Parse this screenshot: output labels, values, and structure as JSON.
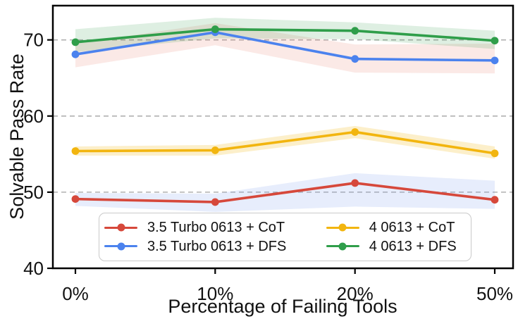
{
  "chart_data": {
    "type": "line",
    "title": "",
    "xlabel": "Percentage of Failing Tools",
    "ylabel": "Solvable Pass Rate",
    "categories": [
      "0%",
      "10%",
      "20%",
      "50%"
    ],
    "yticks": [
      40,
      50,
      60,
      70
    ],
    "ylim": [
      40,
      74.5
    ],
    "grid": {
      "horizontal_dashed_at": [
        50,
        60,
        70
      ],
      "color": "#b0b0b0"
    },
    "axis_color": "#000000",
    "legend": {
      "position": "lower-center-inside",
      "columns": 2,
      "row_major_order": [
        "3.5 Turbo 0613 + CoT",
        "4 0613 + CoT",
        "3.5 Turbo 0613 + DFS",
        "4 0613 + DFS"
      ]
    },
    "series": [
      {
        "name": "3.5 Turbo 0613 + CoT",
        "color": "#d6483b",
        "band_color": "#6f97ec",
        "band_opacity": 0.17,
        "values": [
          49.1,
          48.7,
          51.2,
          49.0
        ],
        "band_upper": [
          49.9,
          49.8,
          52.5,
          51.5
        ],
        "band_lower": [
          48.2,
          47.4,
          48.1,
          47.8
        ]
      },
      {
        "name": "3.5 Turbo 0613 + DFS",
        "color": "#4b82ee",
        "band_color": "#e2695a",
        "band_opacity": 0.15,
        "values": [
          68.1,
          71.0,
          67.5,
          67.3
        ],
        "band_upper": [
          69.5,
          72.2,
          69.4,
          69.5
        ],
        "band_lower": [
          66.4,
          69.3,
          65.7,
          65.6
        ]
      },
      {
        "name": "4 0613 + CoT",
        "color": "#f2b50f",
        "band_color": "#f2b50f",
        "band_opacity": 0.22,
        "values": [
          55.4,
          55.5,
          57.9,
          55.1
        ],
        "band_upper": [
          56.0,
          56.2,
          58.7,
          56.0
        ],
        "band_lower": [
          54.8,
          54.8,
          57.1,
          54.4
        ]
      },
      {
        "name": "4 0613 + DFS",
        "color": "#2f9e4a",
        "band_color": "#2f9e4a",
        "band_opacity": 0.16,
        "values": [
          69.7,
          71.4,
          71.2,
          69.9
        ],
        "band_upper": [
          71.4,
          72.9,
          72.3,
          71.2
        ],
        "band_lower": [
          68.4,
          70.2,
          70.1,
          68.8
        ]
      }
    ]
  }
}
